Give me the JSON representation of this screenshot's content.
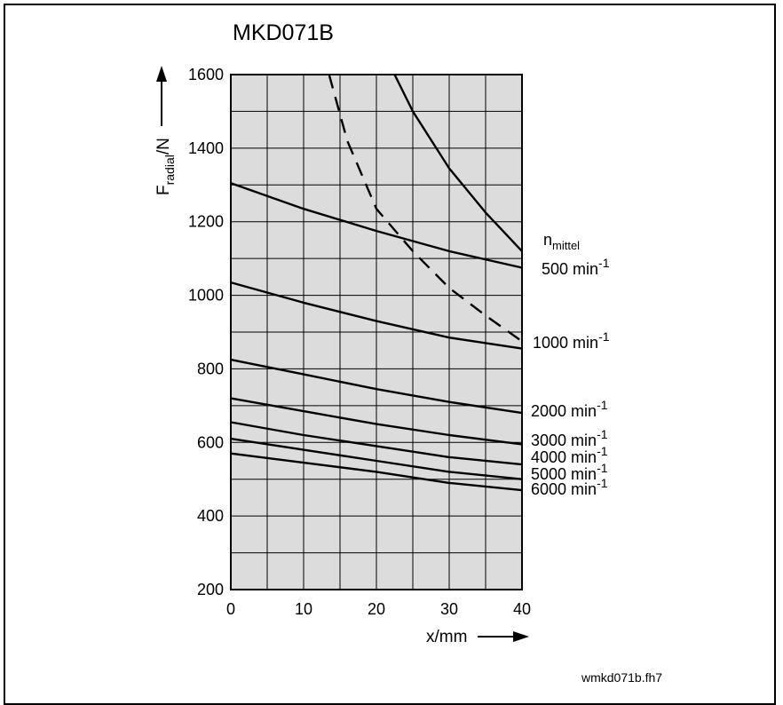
{
  "chart_data": {
    "type": "line",
    "title": "MKD071B",
    "xlabel": "x/mm",
    "ylabel_main": "F",
    "ylabel_sub": "radial",
    "ylabel_unit": "/N",
    "legend_title": "n",
    "legend_title_sub": "mittel",
    "xlim": [
      0,
      40
    ],
    "ylim": [
      200,
      1600
    ],
    "x_ticks": [
      0,
      10,
      20,
      30,
      40
    ],
    "y_ticks": [
      200,
      400,
      600,
      800,
      1000,
      1200,
      1400,
      1600
    ],
    "grid": true,
    "background": "#dcdcdc",
    "footer": "wmkd071b.fh7",
    "series": [
      {
        "name": "500 min",
        "label_base": "500 min",
        "label_exp": "-1",
        "style": "solid",
        "x": [
          0,
          10,
          20,
          30,
          40
        ],
        "y": [
          1305,
          1235,
          1175,
          1120,
          1075
        ]
      },
      {
        "name": "1000 min",
        "label_base": "1000 min",
        "label_exp": "-1",
        "style": "solid",
        "x": [
          0,
          10,
          20,
          30,
          40
        ],
        "y": [
          1035,
          980,
          930,
          885,
          855
        ]
      },
      {
        "name": "2000 min",
        "label_base": "2000 min",
        "label_exp": "-1",
        "style": "solid",
        "x": [
          0,
          10,
          20,
          30,
          40
        ],
        "y": [
          825,
          785,
          745,
          710,
          680
        ]
      },
      {
        "name": "3000 min",
        "label_base": "3000 min",
        "label_exp": "-1",
        "style": "solid",
        "x": [
          0,
          10,
          20,
          30,
          40
        ],
        "y": [
          720,
          685,
          650,
          620,
          595
        ]
      },
      {
        "name": "4000 min",
        "label_base": "4000 min",
        "label_exp": "-1",
        "style": "solid",
        "x": [
          0,
          10,
          20,
          30,
          40
        ],
        "y": [
          655,
          620,
          590,
          560,
          540
        ]
      },
      {
        "name": "5000 min",
        "label_base": "5000 min",
        "label_exp": "-1",
        "style": "solid",
        "x": [
          0,
          10,
          20,
          30,
          40
        ],
        "y": [
          610,
          580,
          550,
          520,
          500
        ]
      },
      {
        "name": "6000 min",
        "label_base": "6000 min",
        "label_exp": "-1",
        "style": "solid",
        "x": [
          0,
          10,
          20,
          30,
          40
        ],
        "y": [
          570,
          545,
          520,
          490,
          470
        ]
      },
      {
        "style": "dashed",
        "x": [
          13.5,
          16,
          20,
          25,
          30,
          35,
          40
        ],
        "y": [
          1600,
          1420,
          1235,
          1120,
          1020,
          945,
          875
        ]
      },
      {
        "style": "solid",
        "x": [
          22.5,
          25,
          30,
          35,
          40
        ],
        "y": [
          1600,
          1500,
          1345,
          1225,
          1120
        ]
      }
    ]
  }
}
